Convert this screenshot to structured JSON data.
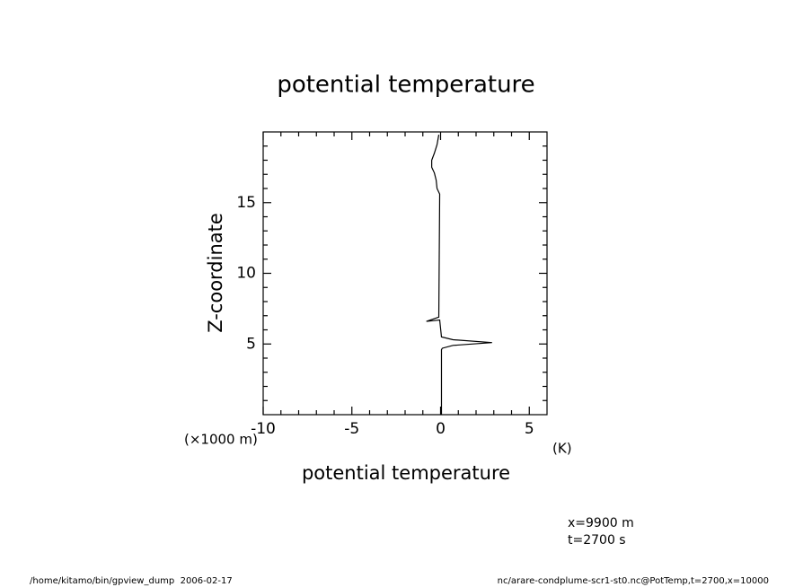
{
  "chart_data": {
    "type": "line",
    "title": "potential temperature",
    "xlabel": "potential temperature",
    "xunit": "(K)",
    "ylabel": "Z-coordinate",
    "yunit": "(×1000 m)",
    "xlim": [
      -10,
      6
    ],
    "ylim": [
      0,
      20
    ],
    "xticks": [
      -10,
      -5,
      0,
      5
    ],
    "yticks": [
      5,
      10,
      15
    ],
    "xminorticks": [
      -9,
      -8,
      -7,
      -6,
      -4,
      -3,
      -2,
      -1,
      1,
      2,
      3,
      4
    ],
    "yminorticks": [
      1,
      2,
      3,
      4,
      6,
      7,
      8,
      9,
      11,
      12,
      13,
      14,
      16,
      17,
      18,
      19
    ],
    "series": [
      {
        "color": "#000000",
        "x": [
          0.05,
          0.05,
          0.1,
          0.7,
          2.9,
          0.7,
          0.05,
          -0.05,
          -0.8,
          -0.1,
          -0.05,
          -0.2,
          -0.25,
          -0.35,
          -0.5,
          -0.5,
          -0.35,
          -0.2,
          -0.1
        ],
        "values": [
          0,
          4.6,
          4.7,
          4.9,
          5.1,
          5.3,
          5.5,
          6.7,
          6.6,
          6.9,
          15.6,
          16.0,
          16.6,
          17.1,
          17.5,
          18.0,
          18.5,
          19.1,
          19.8
        ]
      }
    ],
    "annotations": [
      "x=9900 m",
      "t=2700 s"
    ],
    "footer_left": "/home/kitamo/bin/gpview_dump  2006-02-17",
    "footer_right": "nc/arare-condplume-scr1-st0.nc@PotTemp,t=2700,x=10000"
  }
}
